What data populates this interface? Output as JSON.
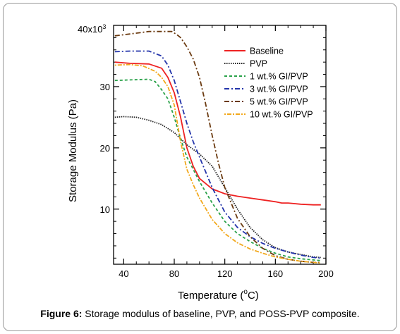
{
  "chart_data": {
    "type": "line",
    "x_label_prefix": "Temperature (",
    "x_label_degree": "o",
    "x_label_unit": "C)",
    "y_label": "Storage Modulus (Pa)",
    "y_top_label": "40x10",
    "y_top_exponent": "3",
    "xlim": [
      32,
      200
    ],
    "ylim": [
      1,
      40
    ],
    "x_ticks": [
      40,
      80,
      120,
      160,
      200
    ],
    "x_tick_labels": [
      "40",
      "80",
      "120",
      "160",
      "200"
    ],
    "y_ticks": [
      10,
      20,
      30
    ],
    "y_tick_labels": [
      "10",
      "20",
      "30"
    ],
    "grid": false,
    "legend_position": "top-right",
    "series": [
      {
        "name": "Baseline",
        "color": "#ee2222",
        "dash": "",
        "x": [
          33,
          45,
          60,
          70,
          75,
          80,
          85,
          90,
          95,
          100,
          110,
          120,
          130,
          140,
          150,
          160,
          165,
          170,
          180,
          190,
          196
        ],
        "y": [
          34.0,
          33.8,
          33.7,
          33.0,
          31.5,
          29.0,
          25.0,
          20.0,
          17.0,
          15.0,
          13.3,
          12.5,
          12.1,
          11.8,
          11.5,
          11.2,
          11.0,
          11.0,
          10.8,
          10.7,
          10.7
        ]
      },
      {
        "name": "PVP",
        "color": "#222222",
        "dash": "1.5,1.5",
        "x": [
          33,
          40,
          50,
          60,
          70,
          80,
          90,
          100,
          110,
          120,
          130,
          140,
          150,
          160,
          170,
          180,
          190,
          196
        ],
        "y": [
          25.0,
          25.1,
          25.0,
          24.5,
          23.8,
          22.5,
          20.5,
          19.0,
          17.0,
          13.5,
          10.0,
          7.0,
          5.0,
          3.7,
          3.0,
          2.6,
          2.2,
          2.1
        ]
      },
      {
        "name": "1 wt.% GI/PVP",
        "color": "#2aa24a",
        "dash": "4,3",
        "x": [
          33,
          45,
          60,
          65,
          70,
          75,
          80,
          85,
          90,
          95,
          100,
          110,
          120,
          130,
          140,
          150,
          160,
          170,
          180,
          190,
          196
        ],
        "y": [
          31.0,
          31.1,
          31.2,
          30.8,
          29.5,
          28.0,
          25.0,
          21.5,
          18.5,
          16.5,
          14.5,
          11.0,
          8.0,
          6.0,
          4.7,
          3.6,
          2.8,
          2.2,
          1.9,
          1.7,
          1.6
        ]
      },
      {
        "name": "3 wt.% GI/PVP",
        "color": "#2233aa",
        "dash": "7,3,2,3",
        "x": [
          33,
          45,
          60,
          70,
          75,
          80,
          85,
          90,
          95,
          100,
          110,
          120,
          130,
          140,
          150,
          160,
          170,
          180,
          190,
          196
        ],
        "y": [
          35.7,
          35.8,
          35.8,
          35.0,
          33.5,
          31.0,
          27.5,
          24.0,
          21.0,
          18.5,
          13.5,
          9.5,
          7.0,
          5.5,
          4.4,
          3.6,
          3.0,
          2.5,
          2.1,
          2.0
        ]
      },
      {
        "name": "5 wt.% GI/PVP",
        "color": "#6b3a10",
        "dash": "7,3,2,3",
        "x": [
          33,
          45,
          60,
          70,
          78,
          82,
          85,
          90,
          95,
          100,
          105,
          110,
          115,
          120,
          130,
          140,
          150,
          160,
          170,
          180,
          190,
          196
        ],
        "y": [
          38.3,
          38.6,
          39.0,
          39.0,
          39.0,
          38.5,
          38.0,
          36.5,
          34.5,
          31.5,
          27.0,
          22.0,
          17.5,
          13.5,
          8.5,
          5.5,
          3.6,
          2.4,
          1.8,
          1.5,
          1.3,
          1.3
        ]
      },
      {
        "name": "10 wt.% GI/PVP",
        "color": "#f2a81c",
        "dash": "2,2,6,2",
        "x": [
          33,
          45,
          55,
          65,
          70,
          75,
          80,
          85,
          90,
          95,
          100,
          110,
          120,
          130,
          140,
          150,
          160,
          170,
          180,
          190,
          196
        ],
        "y": [
          33.5,
          33.6,
          33.4,
          32.5,
          31.5,
          30.0,
          27.0,
          21.0,
          16.5,
          14.0,
          11.8,
          8.3,
          6.0,
          4.5,
          3.5,
          2.8,
          2.2,
          1.8,
          1.5,
          1.3,
          1.2
        ]
      }
    ]
  },
  "caption": {
    "label": "Figure 6:",
    "text": " Storage modulus of baseline, PVP, and POSS-PVP composite."
  }
}
